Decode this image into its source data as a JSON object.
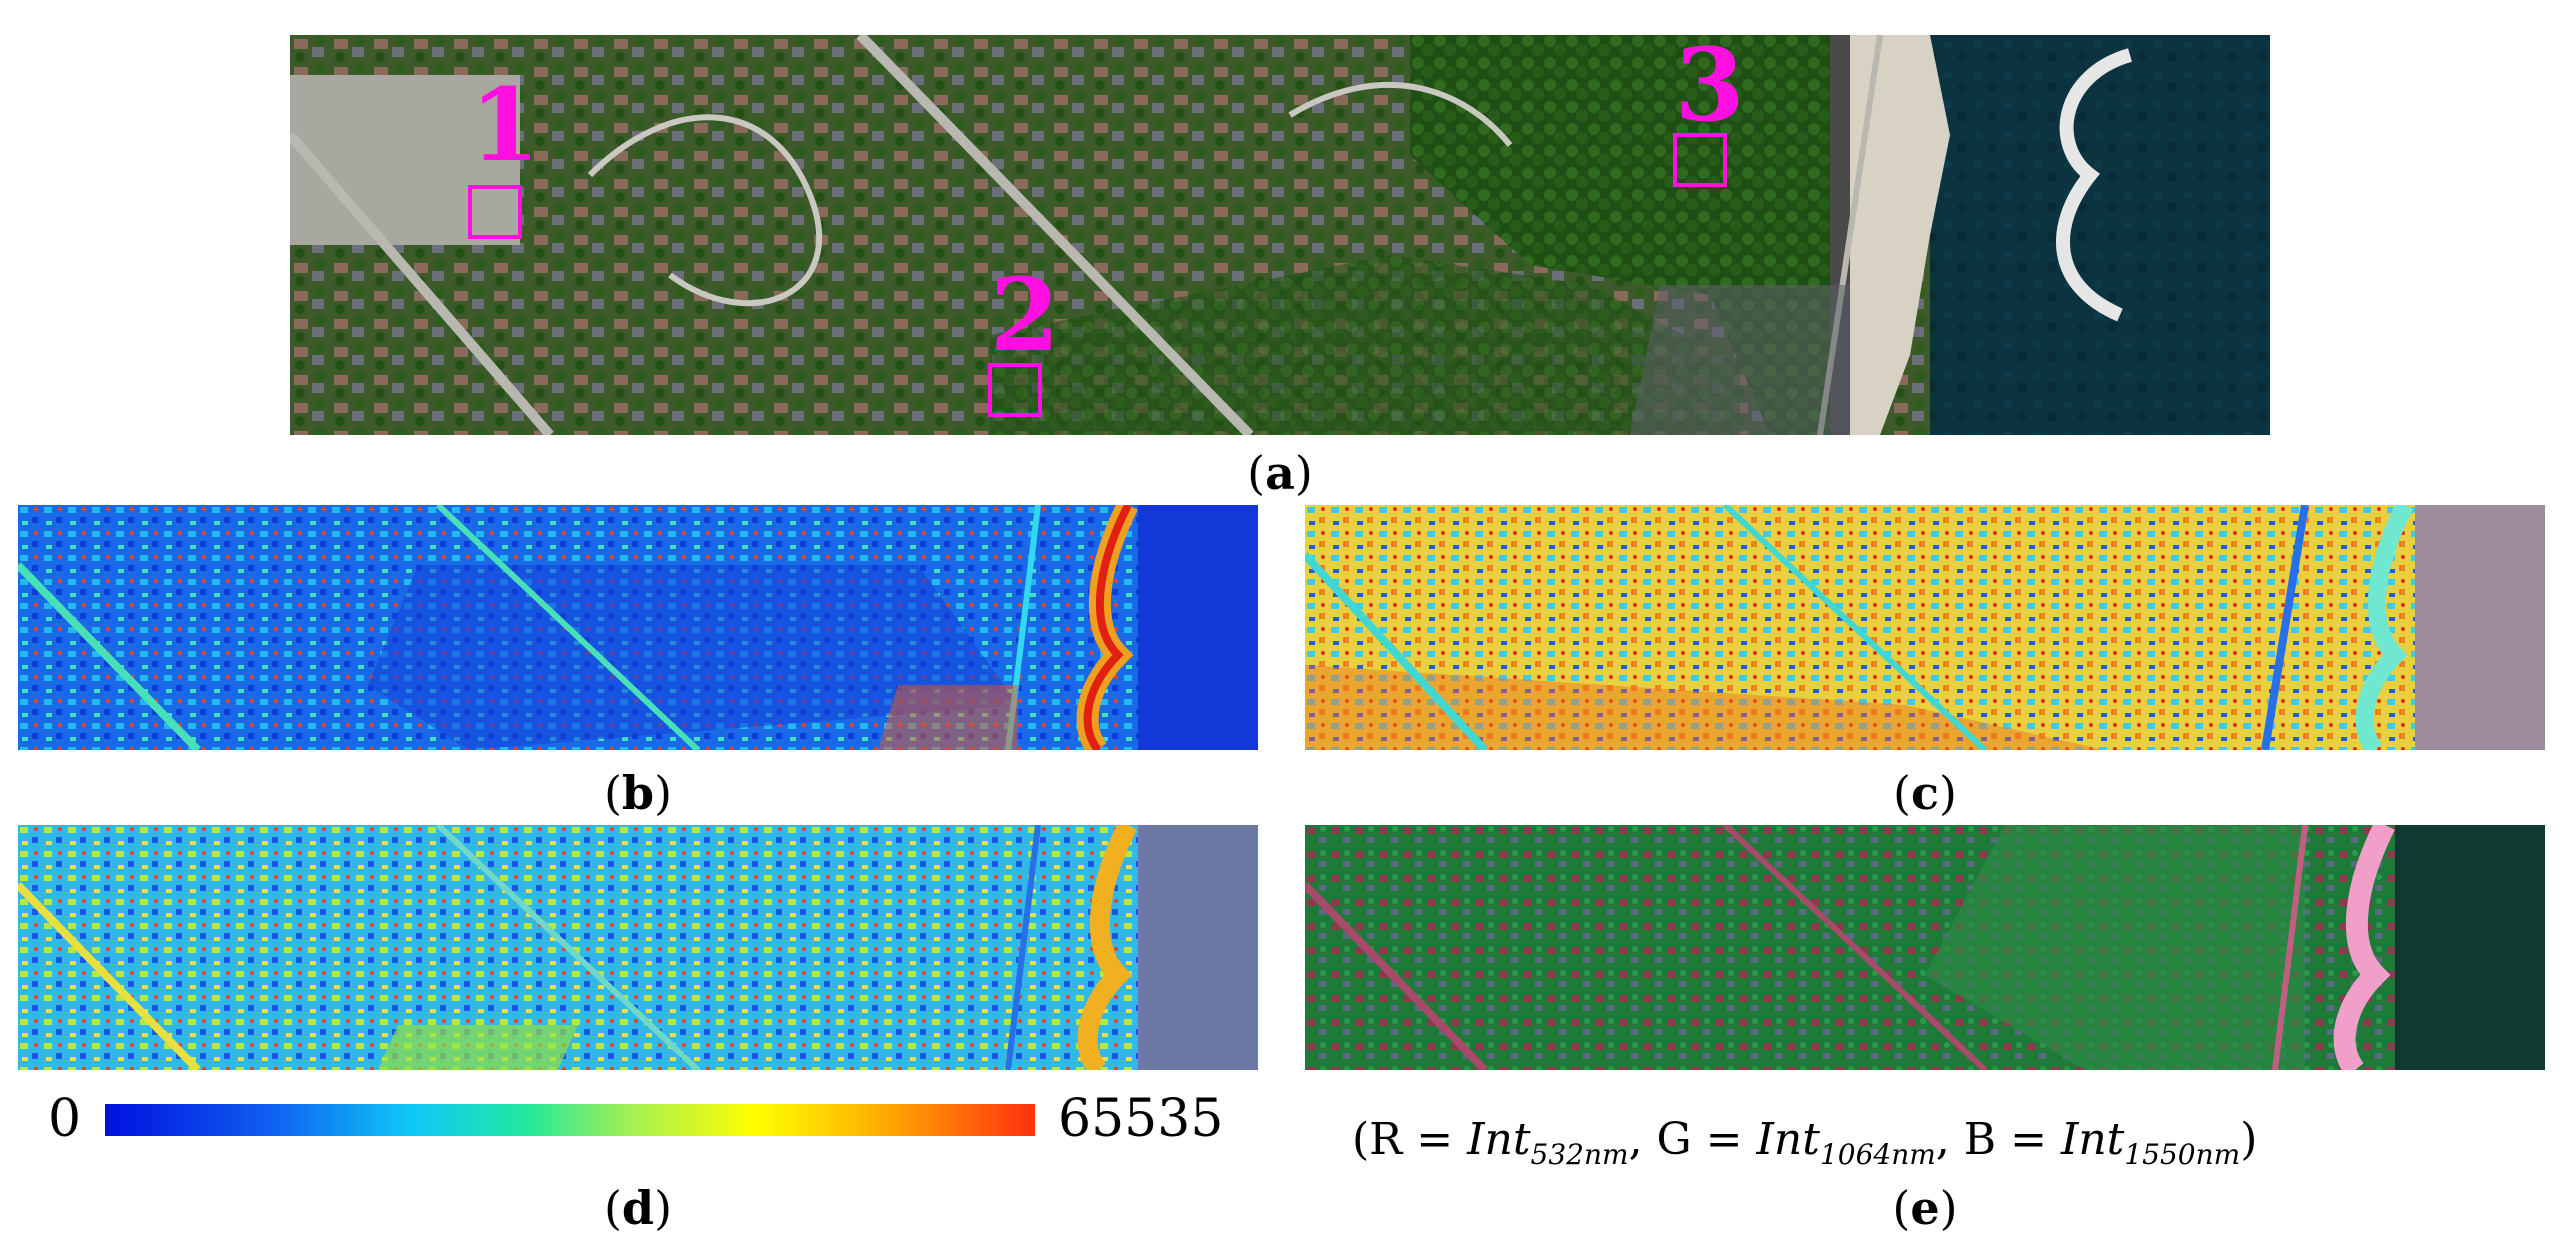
{
  "panels": {
    "a": {
      "caption": "a",
      "markers": [
        "1",
        "2",
        "3"
      ]
    },
    "b": {
      "caption": "b"
    },
    "c": {
      "caption": "c"
    },
    "d": {
      "caption": "d"
    },
    "e": {
      "caption": "e"
    }
  },
  "colorbar": {
    "min_label": "0",
    "max_label": "65535"
  },
  "formula": {
    "open": "(R = ",
    "r_var": "Int",
    "r_sub": "532nm",
    "sep1": ",  G = ",
    "g_var": "Int",
    "g_sub": "1064nm",
    "sep2": ",  B = ",
    "b_var": "Int",
    "b_sub": "1550nm",
    "close": ")"
  },
  "colors": {
    "marker": "#ff10e0",
    "water": "#0b3340",
    "vegetation": "#1f5a16"
  }
}
